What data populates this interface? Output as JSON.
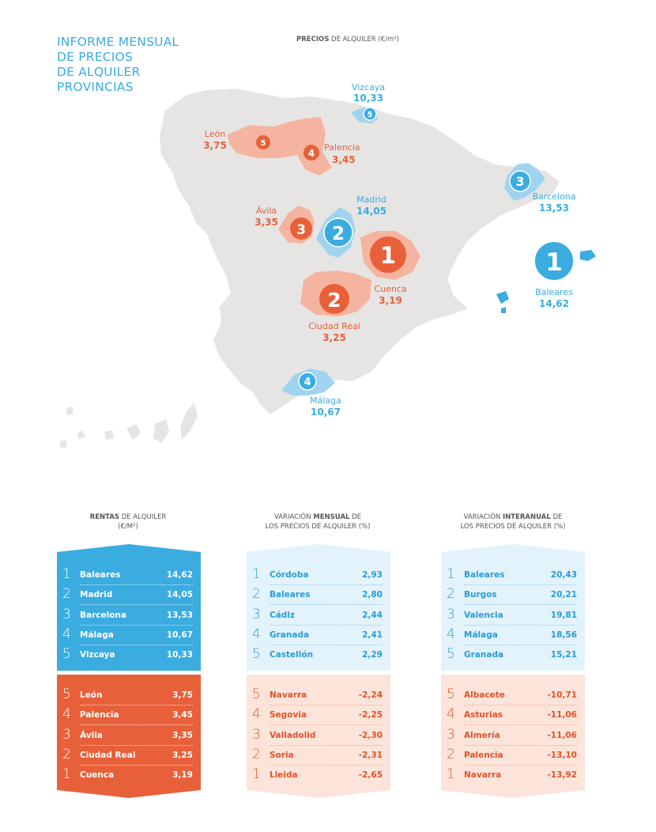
{
  "title_lines": [
    "INFORME MENSUAL",
    "DE PRECIOS",
    "DE ALQUILER",
    "PROVINCIAS"
  ],
  "map_heading": {
    "bold": "PRECIOS",
    "rest": " DE ALQUILER (€/m²)"
  },
  "colors": {
    "blue": "#3aace0",
    "blue_light_area": "#9fd3ef",
    "orange": "#e8603a",
    "orange_light_area": "#f5b49f",
    "blue_panel_bg": "#e3f3fb",
    "orange_panel_bg": "#fde4da",
    "land": "#e6e5e3"
  },
  "map_labels": [
    {
      "id": "vizcaya",
      "name": "Vizcaya",
      "value": "10,33",
      "rank": "5",
      "group": "top"
    },
    {
      "id": "leon",
      "name": "León",
      "value": "3,75",
      "rank": "5",
      "group": "bottom"
    },
    {
      "id": "palencia",
      "name": "Palencia",
      "value": "3,45",
      "rank": "4",
      "group": "bottom"
    },
    {
      "id": "barcelona",
      "name": "Barcelona",
      "value": "13,53",
      "rank": "3",
      "group": "top"
    },
    {
      "id": "avila",
      "name": "Ávila",
      "value": "3,35",
      "rank": "3",
      "group": "bottom"
    },
    {
      "id": "madrid",
      "name": "Madrid",
      "value": "14,05",
      "rank": "2",
      "group": "top"
    },
    {
      "id": "cuenca",
      "name": "Cuenca",
      "value": "3,19",
      "rank": "1",
      "group": "bottom"
    },
    {
      "id": "baleares",
      "name": "Baleares",
      "value": "14,62",
      "rank": "1",
      "group": "top"
    },
    {
      "id": "ciudadreal",
      "name": "Ciudad Real",
      "value": "3,25",
      "rank": "2",
      "group": "bottom"
    },
    {
      "id": "malaga",
      "name": "Málaga",
      "value": "10,67",
      "rank": "4",
      "group": "top"
    }
  ],
  "columns": [
    {
      "id": "rentas",
      "heading_lines": [
        {
          "bold": "RENTAS",
          "rest": " DE ALQUILER"
        },
        {
          "bold": "",
          "rest": "(€/m²)"
        }
      ],
      "top_rows": [
        {
          "rank": "1",
          "name": "Baleares",
          "value": "14,62"
        },
        {
          "rank": "2",
          "name": "Madrid",
          "value": "14,05"
        },
        {
          "rank": "3",
          "name": "Barcelona",
          "value": "13,53"
        },
        {
          "rank": "4",
          "name": "Málaga",
          "value": "10,67"
        },
        {
          "rank": "5",
          "name": "Vizcaya",
          "value": "10,33"
        }
      ],
      "bottom_rows": [
        {
          "rank": "5",
          "name": "León",
          "value": "3,75"
        },
        {
          "rank": "4",
          "name": "Palencia",
          "value": "3,45"
        },
        {
          "rank": "3",
          "name": "Ávila",
          "value": "3,35"
        },
        {
          "rank": "2",
          "name": "Ciudad Real",
          "value": "3,25"
        },
        {
          "rank": "1",
          "name": "Cuenca",
          "value": "3,19"
        }
      ]
    },
    {
      "id": "mensual",
      "heading_lines": [
        {
          "pre": "VARIACIÓN ",
          "bold": "MENSUAL",
          "rest": " DE"
        },
        {
          "pre": "LOS PRECIOS DE ALQUILER (%)",
          "bold": "",
          "rest": ""
        }
      ],
      "top_rows": [
        {
          "rank": "1",
          "name": "Córdoba",
          "value": "2,93"
        },
        {
          "rank": "2",
          "name": "Baleares",
          "value": "2,80"
        },
        {
          "rank": "3",
          "name": "Cádiz",
          "value": "2,44"
        },
        {
          "rank": "4",
          "name": "Granada",
          "value": "2,41"
        },
        {
          "rank": "5",
          "name": "Castellón",
          "value": "2,29"
        }
      ],
      "bottom_rows": [
        {
          "rank": "5",
          "name": "Navarra",
          "value": "-2,24"
        },
        {
          "rank": "4",
          "name": "Segovia",
          "value": "-2,25"
        },
        {
          "rank": "3",
          "name": "Valladolid",
          "value": "-2,30"
        },
        {
          "rank": "2",
          "name": "Soria",
          "value": "-2,31"
        },
        {
          "rank": "1",
          "name": "Lleida",
          "value": "-2,65"
        }
      ]
    },
    {
      "id": "interanual",
      "heading_lines": [
        {
          "pre": "VARIACIÓN ",
          "bold": "INTERANUAL",
          "rest": " DE"
        },
        {
          "pre": "LOS PRECIOS DE ALQUILER (%)",
          "bold": "",
          "rest": ""
        }
      ],
      "top_rows": [
        {
          "rank": "1",
          "name": "Baleares",
          "value": "20,43"
        },
        {
          "rank": "2",
          "name": "Burgos",
          "value": "20,21"
        },
        {
          "rank": "3",
          "name": "Valencia",
          "value": "19,81"
        },
        {
          "rank": "4",
          "name": "Málaga",
          "value": "18,56"
        },
        {
          "rank": "5",
          "name": "Granada",
          "value": "15,21"
        }
      ],
      "bottom_rows": [
        {
          "rank": "5",
          "name": "Albacete",
          "value": "-10,71"
        },
        {
          "rank": "4",
          "name": "Asturias",
          "value": "-11,06"
        },
        {
          "rank": "3",
          "name": "Almería",
          "value": "-11,06"
        },
        {
          "rank": "2",
          "name": "Palencia",
          "value": "-13,10"
        },
        {
          "rank": "1",
          "name": "Navarra",
          "value": "-13,92"
        }
      ]
    }
  ]
}
